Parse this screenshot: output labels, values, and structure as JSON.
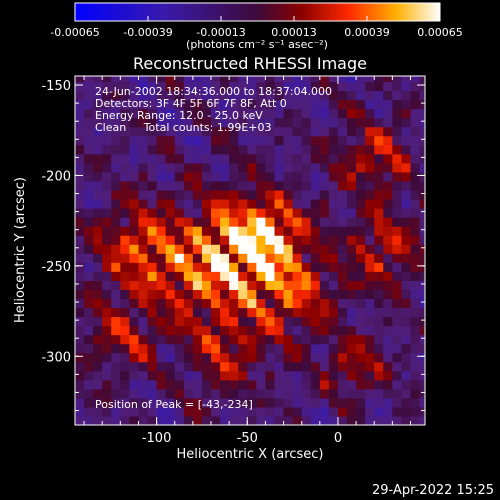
{
  "chart_data": {
    "type": "heatmap",
    "title": "Reconstructed RHESSI Image",
    "xlabel": "Heliocentric X (arcsec)",
    "ylabel": "Heliocentric Y (arcsec)",
    "xlim": [
      -145,
      48
    ],
    "ylim": [
      -338,
      -145
    ],
    "x_ticks": [
      "-100",
      "-50",
      "0"
    ],
    "x_tick_values": [
      -100,
      -50,
      0
    ],
    "y_ticks": [
      "-150",
      "-200",
      "-250",
      "-300"
    ],
    "y_tick_values": [
      -150,
      -200,
      -250,
      -300
    ],
    "colorbar": {
      "ticks": [
        "-0.00065",
        "-0.00039",
        "-0.00013",
        "0.00013",
        "0.00039",
        "0.00065"
      ],
      "tick_values": [
        -0.00065,
        -0.00039,
        -0.00013,
        0.00013,
        0.00039,
        0.00065
      ],
      "range": [
        -0.00065,
        0.00065
      ],
      "units": "(photons cm⁻² s⁻¹ asec⁻²)"
    },
    "annotations": [
      "24-Jun-2002 18:34:36.000 to 18:37:04.000",
      "Detectors: 3F 4F 5F 6F 7F 8F, Att 0",
      "Energy Range: 12.0 - 25.0 keV",
      "Clean     Total counts: 1.99E+03",
      "Position of Peak = [-43,-234]"
    ],
    "peak_position": [
      -43,
      -234
    ],
    "sources": [
      {
        "x": -43,
        "y": -234,
        "amp": 1.0,
        "r": 16
      },
      {
        "x": -70,
        "y": -252,
        "amp": 0.75,
        "r": 22
      },
      {
        "x": -110,
        "y": -240,
        "amp": 0.55,
        "r": 18
      },
      {
        "x": -25,
        "y": -265,
        "amp": 0.6,
        "r": 16
      },
      {
        "x": 20,
        "y": -190,
        "amp": 0.55,
        "r": 14
      },
      {
        "x": 25,
        "y": -240,
        "amp": 0.5,
        "r": 15
      },
      {
        "x": -60,
        "y": -300,
        "amp": 0.45,
        "r": 14
      },
      {
        "x": 10,
        "y": -305,
        "amp": 0.45,
        "r": 12
      },
      {
        "x": -120,
        "y": -290,
        "amp": 0.4,
        "r": 14
      }
    ]
  },
  "footer": {
    "timestamp": "29-Apr-2022 15:25"
  }
}
